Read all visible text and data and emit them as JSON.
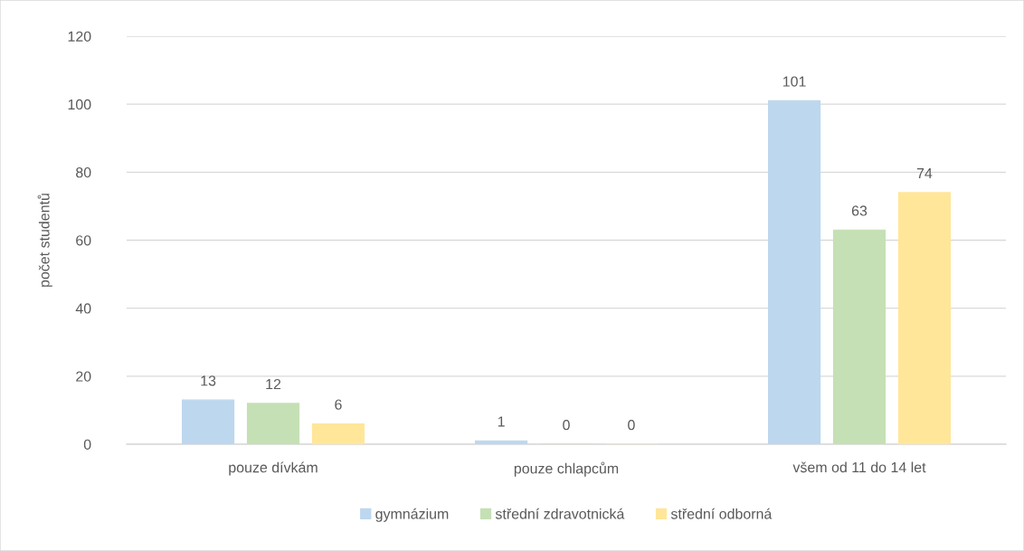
{
  "chart_data": {
    "type": "bar",
    "ylabel": "počet studentů",
    "categories": [
      "pouze dívkám",
      "pouze chlapcům",
      "všem od 11 do 14 let"
    ],
    "series": [
      {
        "name": "gymnázium",
        "color": "#bdd7ee",
        "values": [
          13,
          1,
          101
        ]
      },
      {
        "name": "střední zdravotnická",
        "color": "#c5e0b4",
        "values": [
          12,
          0,
          63
        ]
      },
      {
        "name": "střední odborná",
        "color": "#ffe699",
        "values": [
          6,
          0,
          74
        ]
      }
    ],
    "ylim": [
      0,
      120
    ],
    "yticks": [
      0,
      20,
      40,
      60,
      80,
      100,
      120
    ],
    "grid": "y",
    "legend": "bottom",
    "data_labels": true
  }
}
